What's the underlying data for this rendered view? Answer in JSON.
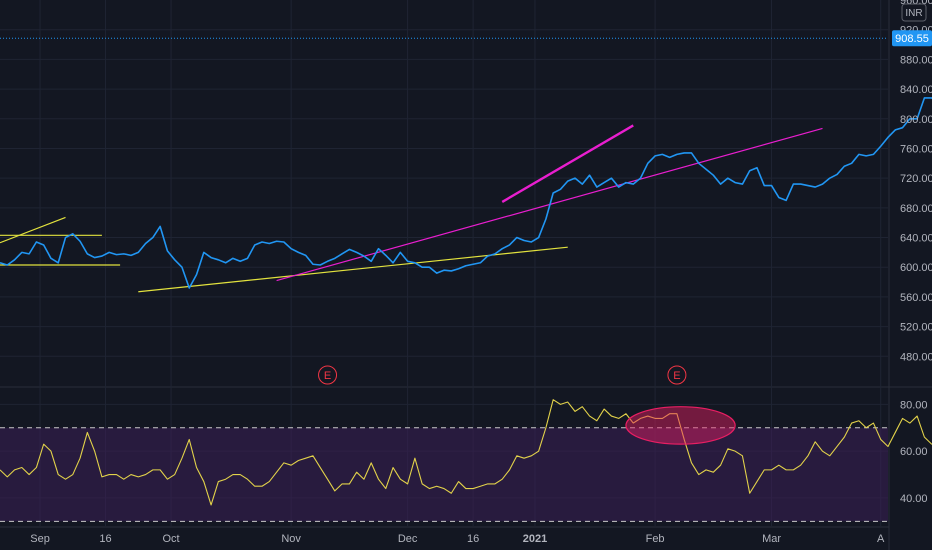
{
  "chart_data": [
    {
      "type": "line",
      "name": "price",
      "ylim": [
        440,
        960
      ],
      "y_ticks": [
        "960.00",
        "920.00",
        "880.00",
        "840.00",
        "800.00",
        "760.00",
        "720.00",
        "680.00",
        "640.00",
        "600.00",
        "560.00",
        "520.00",
        "480.00"
      ],
      "current_price": "908.55",
      "currency": "INR",
      "color": "#2196f3",
      "series": [
        {
          "values": [
            606,
            603,
            610,
            620,
            618,
            634,
            630,
            612,
            606,
            640,
            645,
            635,
            618,
            613,
            615,
            620,
            617,
            618,
            616,
            620,
            632,
            640,
            655,
            622,
            610,
            600,
            572,
            590,
            620,
            613,
            610,
            606,
            612,
            608,
            612,
            630,
            634,
            632,
            635,
            634,
            625,
            620,
            616,
            604,
            603,
            608,
            612,
            618,
            624,
            620,
            615,
            608,
            625,
            616,
            606,
            620,
            608,
            606,
            600,
            600,
            592,
            596,
            595,
            598,
            602,
            604,
            606,
            615,
            618,
            625,
            630,
            640,
            636,
            634,
            640,
            665,
            700,
            705,
            716,
            720,
            712,
            724,
            708,
            714,
            720,
            708,
            714,
            712,
            720,
            740,
            750,
            752,
            748,
            752,
            754,
            754,
            740,
            732,
            724,
            712,
            720,
            714,
            712,
            730,
            734,
            710,
            710,
            694,
            690,
            712,
            712,
            710,
            708,
            712,
            720,
            725,
            736,
            740,
            752,
            750,
            752,
            763,
            775,
            785,
            788,
            800,
            800,
            828,
            828,
            822,
            812,
            810,
            818,
            820,
            812,
            800,
            798,
            774,
            770,
            752,
            790,
            808,
            830,
            858,
            862,
            900,
            932,
            915,
            900,
            912,
            912,
            910,
            908.55
          ]
        }
      ],
      "trendlines": [
        {
          "color": "#e2e23e",
          "width": 1.2,
          "points": [
            [
              0.0,
              633
            ],
            [
              9.0,
              667
            ]
          ]
        },
        {
          "color": "#e2e23e",
          "width": 1.2,
          "points": [
            [
              0.0,
              643
            ],
            [
              14.0,
              643
            ]
          ]
        },
        {
          "color": "#e2e23e",
          "width": 1.2,
          "points": [
            [
              0.0,
              603
            ],
            [
              16.5,
              603
            ]
          ]
        },
        {
          "color": "#e2e23e",
          "width": 1.2,
          "points": [
            [
              19.0,
              567
            ],
            [
              78.0,
              627
            ]
          ]
        },
        {
          "color": "#e91ecf",
          "width": 1.2,
          "points": [
            [
              38.0,
              582
            ],
            [
              113.0,
              787
            ]
          ]
        },
        {
          "color": "#e91ecf",
          "width": 2.4,
          "points": [
            [
              69.0,
              688
            ],
            [
              87.0,
              791
            ]
          ]
        }
      ],
      "x_ticks": [
        {
          "label": "Sep",
          "x": 5.5,
          "bold": false
        },
        {
          "label": "16",
          "x": 14.5,
          "bold": false
        },
        {
          "label": "Oct",
          "x": 23.5,
          "bold": false
        },
        {
          "label": "Nov",
          "x": 40.0,
          "bold": false
        },
        {
          "label": "Dec",
          "x": 56.0,
          "bold": false
        },
        {
          "label": "16",
          "x": 65.0,
          "bold": false
        },
        {
          "label": "2021",
          "x": 73.5,
          "bold": true
        },
        {
          "label": "Feb",
          "x": 90.0,
          "bold": false
        },
        {
          "label": "Mar",
          "x": 106.0,
          "bold": false
        },
        {
          "label": "A",
          "x": 121.0,
          "bold": false
        }
      ],
      "xlim": [
        0,
        122
      ],
      "earnings_markers": [
        {
          "label": "E",
          "x": 45.0
        },
        {
          "label": "E",
          "x": 93.0
        }
      ]
    },
    {
      "type": "line",
      "name": "rsi",
      "ylim": [
        28,
        87
      ],
      "y_ticks": [
        "80.00",
        "60.00",
        "40.00"
      ],
      "levels": [
        70,
        30
      ],
      "band_color": "#3a1f55",
      "color": "#e2d24a",
      "series": [
        {
          "values": [
            52,
            49,
            52,
            53,
            50,
            53,
            63,
            60,
            50,
            48,
            50,
            57,
            68,
            60,
            49,
            50,
            50,
            48,
            50,
            49,
            50,
            52,
            52,
            48,
            50,
            57,
            65,
            53,
            47,
            37,
            47,
            48,
            50,
            50,
            48,
            45,
            45,
            47,
            51,
            55,
            54,
            56,
            57,
            58,
            53,
            48,
            43,
            46,
            46,
            51,
            48,
            55,
            48,
            44,
            53,
            48,
            46,
            57,
            46,
            44,
            45,
            44,
            42,
            47,
            44,
            44,
            45,
            46,
            46,
            48,
            52,
            58,
            57,
            58,
            60,
            70,
            82,
            80,
            81,
            77,
            79,
            75,
            73,
            78,
            75,
            74,
            76,
            72,
            74,
            75,
            74,
            74,
            76,
            76,
            65,
            55,
            50,
            52,
            51,
            54,
            61,
            60,
            58,
            42,
            47,
            52,
            52,
            54,
            52,
            52,
            54,
            58,
            64,
            60,
            58,
            62,
            66,
            72,
            73,
            70,
            72,
            65,
            62,
            68,
            74,
            72,
            75,
            66,
            63,
            64,
            66,
            62,
            58,
            52,
            48,
            43,
            56,
            61,
            66,
            70,
            72,
            75,
            80,
            73,
            67,
            66,
            72,
            68,
            70,
            68,
            67
          ]
        }
      ],
      "annotation": {
        "type": "ellipse",
        "cx": 93.5,
        "cy": 71,
        "rx": 7.5,
        "ry": 8,
        "fill": "#e91e63",
        "stroke": "#e91e63"
      }
    }
  ]
}
